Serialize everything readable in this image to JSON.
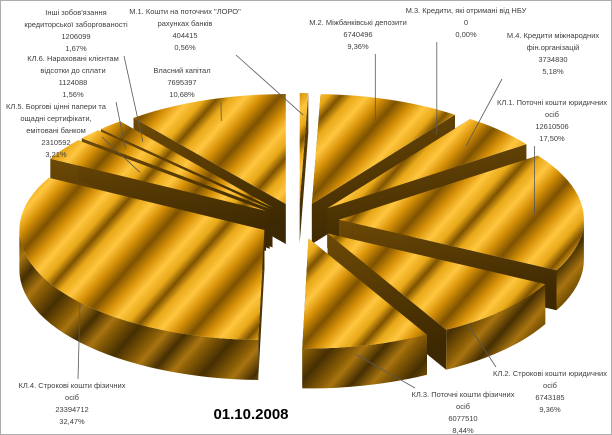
{
  "frame": {
    "background": "#FFFFFF",
    "border_color": "#ACACAC"
  },
  "chart_data": {
    "type": "pie",
    "pie_style": "3d-exploded",
    "direction": "clockwise",
    "start_angle_deg": 0,
    "legend_position": "none",
    "date_label": "01.10.2008",
    "slices": [
      {
        "id": "m1",
        "label": "М.1. Кошти на поточних \"ЛОРО\" рахунках банків",
        "value": 404415,
        "value_text": "404415",
        "pct": 0.56,
        "pct_text": "0,56%"
      },
      {
        "id": "m2",
        "label": "М.2. Міжбанківські депозити",
        "value": 6740496,
        "value_text": "6740496",
        "pct": 9.36,
        "pct_text": "9,36%"
      },
      {
        "id": "m3",
        "label": "М.3. Кредити, які отримані від НБУ",
        "value": 0,
        "value_text": "0",
        "pct": 0.0,
        "pct_text": "0,00%"
      },
      {
        "id": "m4",
        "label": "М.4. Кредити міжнародних фін.організацій",
        "value": 3734830,
        "value_text": "3734830",
        "pct": 5.18,
        "pct_text": "5,18%"
      },
      {
        "id": "kl1",
        "label": "КЛ.1. Поточні кошти юридичних осіб",
        "value": 12610506,
        "value_text": "12610506",
        "pct": 17.5,
        "pct_text": "17,50%"
      },
      {
        "id": "kl2",
        "label": "КЛ.2. Строкові кошти юридичних осіб",
        "value": 6743185,
        "value_text": "6743185",
        "pct": 9.36,
        "pct_text": "9,36%"
      },
      {
        "id": "kl3",
        "label": "КЛ.3. Поточні кошти фізичних осіб",
        "value": 6077510,
        "value_text": "6077510",
        "pct": 8.44,
        "pct_text": "8,44%"
      },
      {
        "id": "kl4",
        "label": "КЛ.4. Строкові кошти фізичних осіб",
        "value": 23394712,
        "value_text": "23394712",
        "pct": 32.47,
        "pct_text": "32,47%"
      },
      {
        "id": "kl5",
        "label": "КЛ.5. Боргові цінні папери та ощадні сертифікати, емітовані банком",
        "value": 2310592,
        "value_text": "2310592",
        "pct": 3.21,
        "pct_text": "3,21%"
      },
      {
        "id": "kl6",
        "label": "КЛ.6. Нараховані клієнтам відсотки до сплати",
        "value": 1124088,
        "value_text": "1124088",
        "pct": 1.56,
        "pct_text": "1,56%"
      },
      {
        "id": "inshi",
        "label": "Інші зобов'язання кредиторської заборгованості",
        "value": 1206099,
        "value_text": "1206099",
        "pct": 1.67,
        "pct_text": "1,67%"
      },
      {
        "id": "vlasnyi",
        "label": "Власний капітал",
        "value": 7695397,
        "value_text": "7695397",
        "pct": 10.68,
        "pct_text": "10,68%"
      }
    ],
    "palette": {
      "gold_light": "#FFC63F",
      "gold_mid": "#D89208",
      "gold_mid2": "#E8A818",
      "gold_dark": "#7E5200",
      "side_light": "#A87410",
      "side_mid": "#8A5E06",
      "side_dark": "#462F02",
      "cut_light": "#6E4A06",
      "cut_dark": "#3C2802",
      "label_text": "#3F3F3F",
      "leader_line": "#595959",
      "date_text": "#000000"
    }
  }
}
